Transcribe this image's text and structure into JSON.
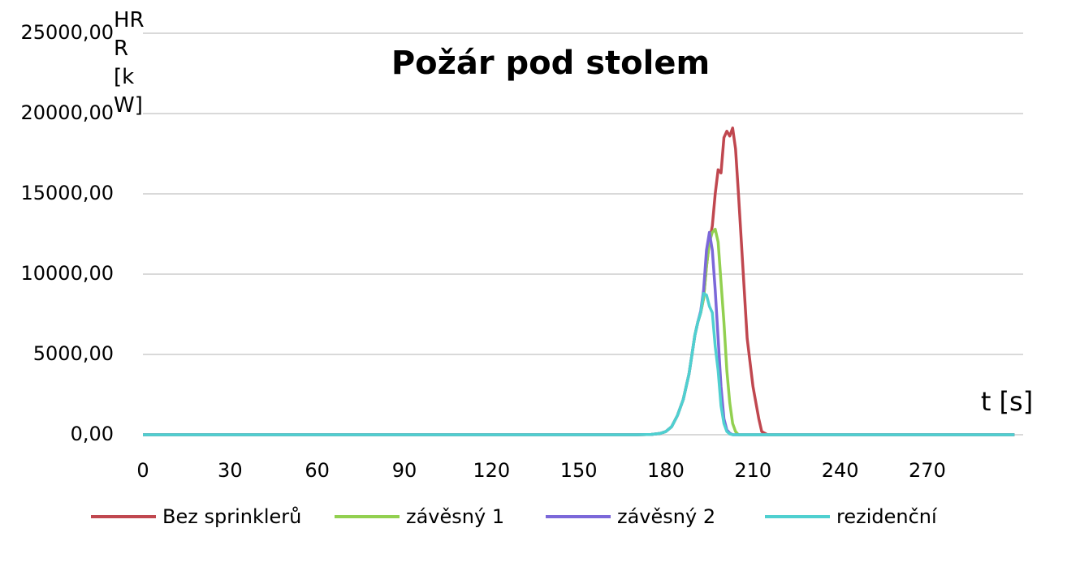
{
  "chart_data": {
    "type": "line",
    "title": "Požár pod stolem",
    "y_label": "HRR [kW]",
    "x_label": "t [s]",
    "x": [
      0,
      20,
      40,
      60,
      80,
      100,
      120,
      140,
      160,
      170,
      175,
      178,
      180,
      182,
      184,
      186,
      188,
      190,
      191,
      192,
      193,
      194,
      195,
      196,
      197,
      198,
      199,
      200,
      201,
      202,
      203,
      204,
      205,
      206,
      207,
      208,
      209,
      210,
      211,
      212,
      213,
      215,
      220,
      240,
      260,
      280,
      300
    ],
    "series": [
      {
        "name": "Bez sprinklerů",
        "color": "#c0474f",
        "values": [
          0,
          0,
          0,
          0,
          0,
          0,
          0,
          0,
          0,
          0,
          20,
          80,
          200,
          500,
          1200,
          2200,
          3800,
          6200,
          7000,
          7600,
          8500,
          10500,
          12000,
          13000,
          15000,
          16500,
          16300,
          18500,
          18900,
          18600,
          19100,
          17800,
          15000,
          12000,
          9000,
          6000,
          4500,
          3000,
          2000,
          1000,
          200,
          0,
          0,
          0,
          0,
          0,
          0
        ]
      },
      {
        "name": "závěsný 1",
        "color": "#92d050",
        "values": [
          0,
          0,
          0,
          0,
          0,
          0,
          0,
          0,
          0,
          0,
          20,
          80,
          200,
          500,
          1200,
          2200,
          3800,
          6200,
          7000,
          7600,
          8500,
          10500,
          12000,
          12600,
          12800,
          12000,
          9500,
          7000,
          4000,
          2000,
          700,
          200,
          0,
          0,
          0,
          0,
          0,
          0,
          0,
          0,
          0,
          0,
          0,
          0,
          0,
          0,
          0
        ]
      },
      {
        "name": "závěsný 2",
        "color": "#7b68d9",
        "values": [
          0,
          0,
          0,
          0,
          0,
          0,
          0,
          0,
          0,
          0,
          20,
          80,
          200,
          500,
          1200,
          2200,
          3800,
          6200,
          7000,
          7700,
          9000,
          11500,
          12600,
          11500,
          9000,
          6000,
          3000,
          1000,
          300,
          100,
          0,
          0,
          0,
          0,
          0,
          0,
          0,
          0,
          0,
          0,
          0,
          0,
          0,
          0,
          0,
          0,
          0
        ]
      },
      {
        "name": "rezidenční",
        "color": "#4fd0d0",
        "values": [
          0,
          0,
          0,
          0,
          0,
          0,
          0,
          0,
          0,
          0,
          20,
          80,
          200,
          500,
          1200,
          2200,
          3800,
          6200,
          7000,
          7600,
          8800,
          8700,
          8000,
          7600,
          5500,
          4000,
          1800,
          700,
          200,
          50,
          0,
          0,
          0,
          0,
          0,
          0,
          0,
          0,
          0,
          0,
          0,
          0,
          0,
          0,
          0,
          0,
          0
        ]
      }
    ],
    "xlim": [
      0,
      303
    ],
    "xticks": [
      0,
      30,
      60,
      90,
      120,
      150,
      180,
      210,
      240,
      270
    ],
    "ylim": [
      0,
      25000
    ],
    "yticks": [
      {
        "value": 0,
        "label": "0,00"
      },
      {
        "value": 5000,
        "label": "5000,00"
      },
      {
        "value": 10000,
        "label": "10000,00"
      },
      {
        "value": 15000,
        "label": "15000,00"
      },
      {
        "value": 20000,
        "label": "20000,00"
      },
      {
        "value": 25000,
        "label": "25000,00"
      }
    ],
    "grid": true,
    "legend": "bottom"
  }
}
